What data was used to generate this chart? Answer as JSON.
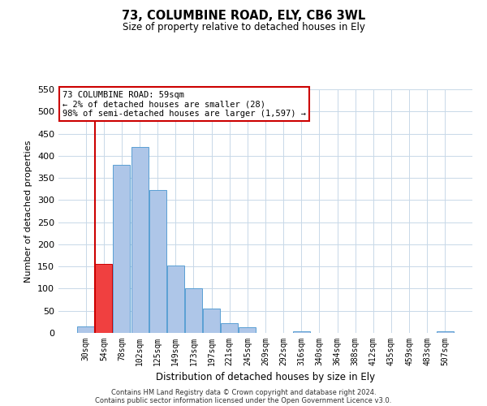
{
  "title": "73, COLUMBINE ROAD, ELY, CB6 3WL",
  "subtitle": "Size of property relative to detached houses in Ely",
  "xlabel": "Distribution of detached houses by size in Ely",
  "ylabel": "Number of detached properties",
  "bin_labels": [
    "30sqm",
    "54sqm",
    "78sqm",
    "102sqm",
    "125sqm",
    "149sqm",
    "173sqm",
    "197sqm",
    "221sqm",
    "245sqm",
    "269sqm",
    "292sqm",
    "316sqm",
    "340sqm",
    "364sqm",
    "388sqm",
    "412sqm",
    "435sqm",
    "459sqm",
    "483sqm",
    "507sqm"
  ],
  "bar_values": [
    15,
    155,
    380,
    420,
    322,
    153,
    100,
    55,
    22,
    12,
    0,
    0,
    3,
    0,
    0,
    0,
    0,
    0,
    0,
    0,
    3
  ],
  "bar_color": "#aec6e8",
  "bar_edge_color": "#5a9fd4",
  "highlight_bar_index": 1,
  "highlight_bar_color": "#f04040",
  "highlight_line_color": "#cc0000",
  "annotation_line1": "73 COLUMBINE ROAD: 59sqm",
  "annotation_line2": "← 2% of detached houses are smaller (28)",
  "annotation_line3": "98% of semi-detached houses are larger (1,597) →",
  "annotation_box_color": "#ffffff",
  "annotation_box_edge_color": "#cc0000",
  "ylim": [
    0,
    550
  ],
  "yticks": [
    0,
    50,
    100,
    150,
    200,
    250,
    300,
    350,
    400,
    450,
    500,
    550
  ],
  "footnote1": "Contains HM Land Registry data © Crown copyright and database right 2024.",
  "footnote2": "Contains public sector information licensed under the Open Government Licence v3.0.",
  "background_color": "#ffffff",
  "grid_color": "#c8d8e8"
}
